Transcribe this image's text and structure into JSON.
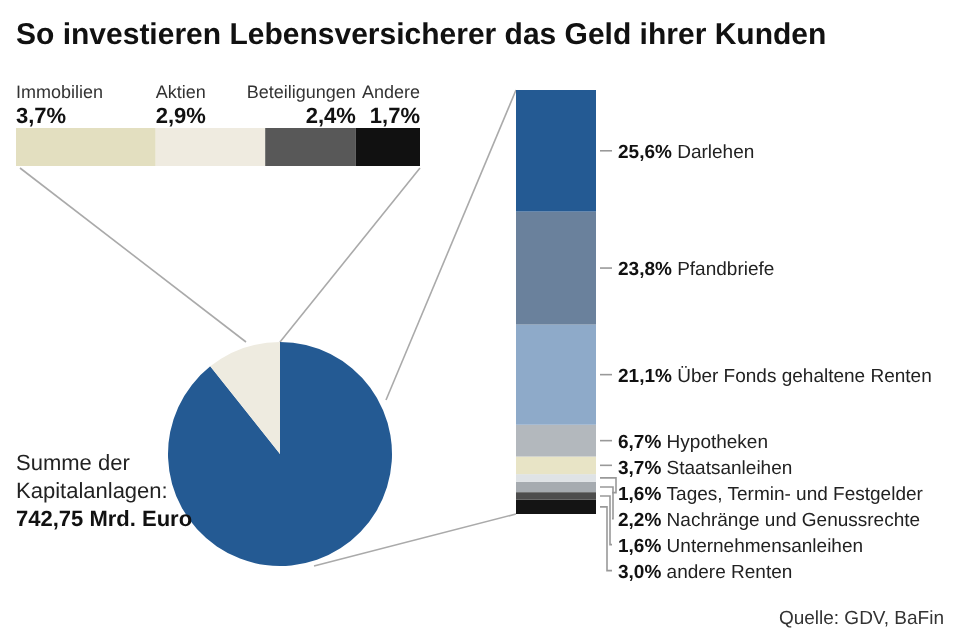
{
  "chart_data": [
    {
      "type": "bar",
      "title": "So investieren Lebensversicherer das Geld ihrer Kunden",
      "orientation": "horizontal",
      "stacked": true,
      "categories": [
        null
      ],
      "series": [
        {
          "name": "Immobilien",
          "color": "#e3dfc0",
          "values": [
            3.7
          ],
          "value_labels": [
            "3,7%"
          ]
        },
        {
          "name": "Aktien",
          "color": "#efebe0",
          "values": [
            2.9
          ],
          "value_labels": [
            "2,9%"
          ]
        },
        {
          "name": "Beteiligungen",
          "color": "#585858",
          "values": [
            2.4
          ],
          "value_labels": [
            "2,4%"
          ]
        },
        {
          "name": "Andere",
          "color": "#111111",
          "values": [
            1.7
          ],
          "value_labels": [
            "1,7%"
          ]
        }
      ]
    },
    {
      "type": "pie",
      "categories": [
        null,
        null
      ],
      "values": [
        89.3,
        10.7
      ],
      "colors": [
        "#245a93",
        "#eeebe0"
      ],
      "annotations": [
        "Summe der Kapitalanlagen:",
        "742,75 Mrd. Euro",
        "Quelle: GDV, BaFin"
      ]
    },
    {
      "type": "bar",
      "stacked": true,
      "categories": [
        null
      ],
      "series": [
        {
          "name": "andere Renten",
          "color": "#141414",
          "values": [
            3.0
          ],
          "value_labels": [
            "3,0%"
          ]
        },
        {
          "name": "Unternehmensanleihen",
          "color": "#4d4d4d",
          "values": [
            1.6
          ],
          "value_labels": [
            "1,6%"
          ]
        },
        {
          "name": "Nachränge und Genussrechte",
          "color": "#a6abb0",
          "values": [
            2.2
          ],
          "value_labels": [
            "2,2%"
          ]
        },
        {
          "name": "Tages, Termin- und Festgelder",
          "color": "#dfe3e6",
          "values": [
            1.6
          ],
          "value_labels": [
            "1,6%"
          ]
        },
        {
          "name": "Staatsanleihen",
          "color": "#e8e4c6",
          "values": [
            3.7
          ],
          "value_labels": [
            "3,7%"
          ]
        },
        {
          "name": "Hypotheken",
          "color": "#b3b8bd",
          "values": [
            6.7
          ],
          "value_labels": [
            "6,7%"
          ]
        },
        {
          "name": "Über Fonds gehaltene Renten",
          "color": "#8eaac9",
          "values": [
            21.1
          ],
          "value_labels": [
            "21,1%"
          ]
        },
        {
          "name": "Pfandbriefe",
          "color": "#6a819c",
          "values": [
            23.8
          ],
          "value_labels": [
            "23,8%"
          ]
        },
        {
          "name": "Darlehen",
          "color": "#245a93",
          "values": [
            25.6
          ],
          "value_labels": [
            "25,6%"
          ]
        }
      ]
    }
  ]
}
